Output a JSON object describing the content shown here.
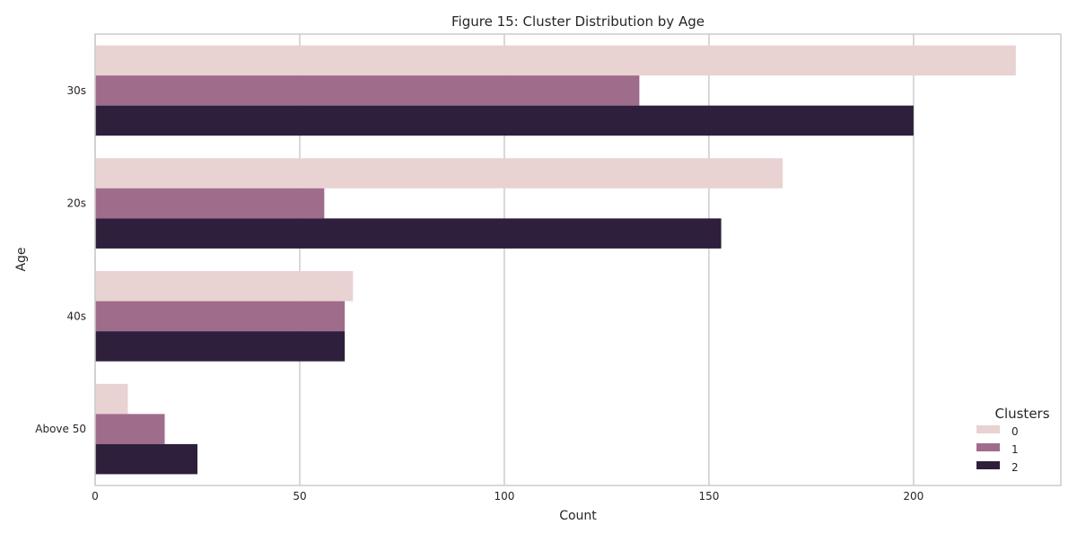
{
  "chart_data": {
    "type": "bar",
    "orientation": "horizontal",
    "title": "Figure 15: Cluster Distribution by Age",
    "xlabel": "Count",
    "ylabel": "Age",
    "categories": [
      "30s",
      "20s",
      "40s",
      "Above 50"
    ],
    "xlim": [
      0,
      236
    ],
    "x_ticks": [
      0,
      50,
      100,
      150,
      200
    ],
    "grid": true,
    "legend": {
      "title": "Clusters",
      "placement": "lower-right"
    },
    "series": [
      {
        "name": "0",
        "color": "#e8d2d2",
        "values": [
          225,
          168,
          63,
          8
        ]
      },
      {
        "name": "1",
        "color": "#a06c8c",
        "values": [
          133,
          56,
          61,
          17
        ]
      },
      {
        "name": "2",
        "color": "#2e1f3c",
        "values": [
          200,
          153,
          61,
          25
        ]
      }
    ]
  }
}
